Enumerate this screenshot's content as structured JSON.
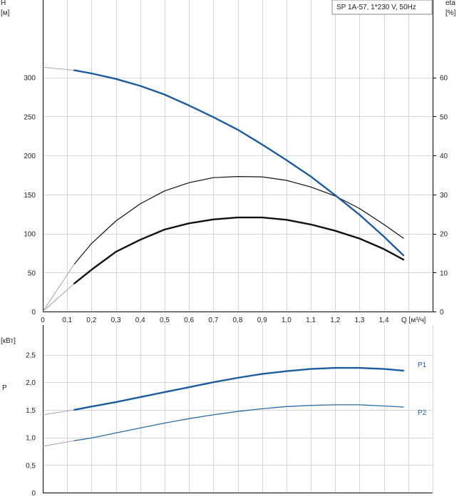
{
  "colors": {
    "head_curve": "#1e5b9b",
    "efficiency_curve": "#111111",
    "p1_curve": "#1e5b9b",
    "p2_curve": "#2e6ca8",
    "series_label": "#1e5b9b",
    "grid": "#d4d4d4",
    "extrapolation": "#9a9a9a"
  },
  "chart_data": [
    {
      "type": "line",
      "title": "SP 1A-57, 1*230 V, 50Hz",
      "xlabel": "Q [м³/ч]",
      "ylabel": "H",
      "ylabel_unit": "[м]",
      "y2label": "eta",
      "y2label_unit": "[%]",
      "xlim": [
        0,
        1.6
      ],
      "ylim": [
        0,
        350
      ],
      "y2lim": [
        0,
        70
      ],
      "grid": true,
      "x_ticks": [
        "0",
        "0,1",
        "0,2",
        "0,3",
        "0,4",
        "0,5",
        "0,6",
        "0,7",
        "0,8",
        "0,9",
        "1,0",
        "1,1",
        "1,2",
        "1,3",
        "1,4",
        "Q [м³/ч]"
      ],
      "y_ticks": [
        "0",
        "50",
        "100",
        "150",
        "200",
        "250",
        "300"
      ],
      "y2_ticks": [
        "0",
        "10",
        "20",
        "30",
        "40",
        "50",
        "60"
      ],
      "series": [
        {
          "axis": "left",
          "color": "head",
          "x": [
            0.0,
            0.13,
            0.2,
            0.3,
            0.4,
            0.5,
            0.6,
            0.7,
            0.8,
            0.9,
            1.0,
            1.1,
            1.2,
            1.3,
            1.4,
            1.48
          ],
          "values": [
            313,
            309,
            305,
            298,
            289,
            278,
            264,
            249,
            233,
            214,
            194,
            173,
            149,
            124,
            96,
            72
          ],
          "solid_from": 0.13,
          "width": 2.4
        },
        {
          "axis": "right",
          "color": "eta_total",
          "x": [
            0.0,
            0.13,
            0.2,
            0.3,
            0.4,
            0.5,
            0.6,
            0.7,
            0.8,
            0.9,
            1.0,
            1.1,
            1.2,
            1.3,
            1.4,
            1.48
          ],
          "values": [
            0,
            12.2,
            17.4,
            23.2,
            27.6,
            30.9,
            33.0,
            34.3,
            34.6,
            34.5,
            33.6,
            31.9,
            29.6,
            26.4,
            22.3,
            18.8
          ],
          "solid_from": 0.13,
          "width": 1.2
        },
        {
          "axis": "right",
          "color": "eta_hydraulic",
          "x": [
            0.0,
            0.13,
            0.2,
            0.3,
            0.4,
            0.5,
            0.6,
            0.7,
            0.8,
            0.9,
            1.0,
            1.1,
            1.2,
            1.3,
            1.4,
            1.48
          ],
          "values": [
            0,
            7.2,
            10.7,
            15.3,
            18.4,
            21.0,
            22.6,
            23.6,
            24.1,
            24.1,
            23.5,
            22.3,
            20.7,
            18.7,
            16.0,
            13.3
          ],
          "solid_from": 0.13,
          "width": 2.4
        }
      ]
    },
    {
      "type": "line",
      "ylabel": "P",
      "ylabel_unit": "[кВт]",
      "xlim": [
        0,
        1.6
      ],
      "ylim": [
        0,
        2.8
      ],
      "grid": true,
      "y_ticks": [
        "0",
        "0,5",
        "1,0",
        "1,5",
        "2,0",
        "2,5"
      ],
      "series": [
        {
          "name": "P1",
          "color": "p1",
          "x": [
            0.0,
            0.13,
            0.2,
            0.3,
            0.4,
            0.5,
            0.6,
            0.7,
            0.8,
            0.9,
            1.0,
            1.1,
            1.2,
            1.3,
            1.4,
            1.48
          ],
          "values": [
            1.41,
            1.5,
            1.56,
            1.64,
            1.73,
            1.82,
            1.91,
            2.0,
            2.08,
            2.15,
            2.2,
            2.24,
            2.26,
            2.26,
            2.24,
            2.21
          ],
          "solid_from": 0.13,
          "width": 2.4
        },
        {
          "name": "P2",
          "color": "p2",
          "x": [
            0.0,
            0.13,
            0.2,
            0.3,
            0.4,
            0.5,
            0.6,
            0.7,
            0.8,
            0.9,
            1.0,
            1.1,
            1.2,
            1.3,
            1.4,
            1.48
          ],
          "values": [
            0.84,
            0.94,
            0.99,
            1.08,
            1.17,
            1.26,
            1.34,
            1.41,
            1.47,
            1.52,
            1.56,
            1.58,
            1.59,
            1.59,
            1.57,
            1.55
          ],
          "solid_from": 0.13,
          "width": 1.3
        }
      ]
    }
  ]
}
